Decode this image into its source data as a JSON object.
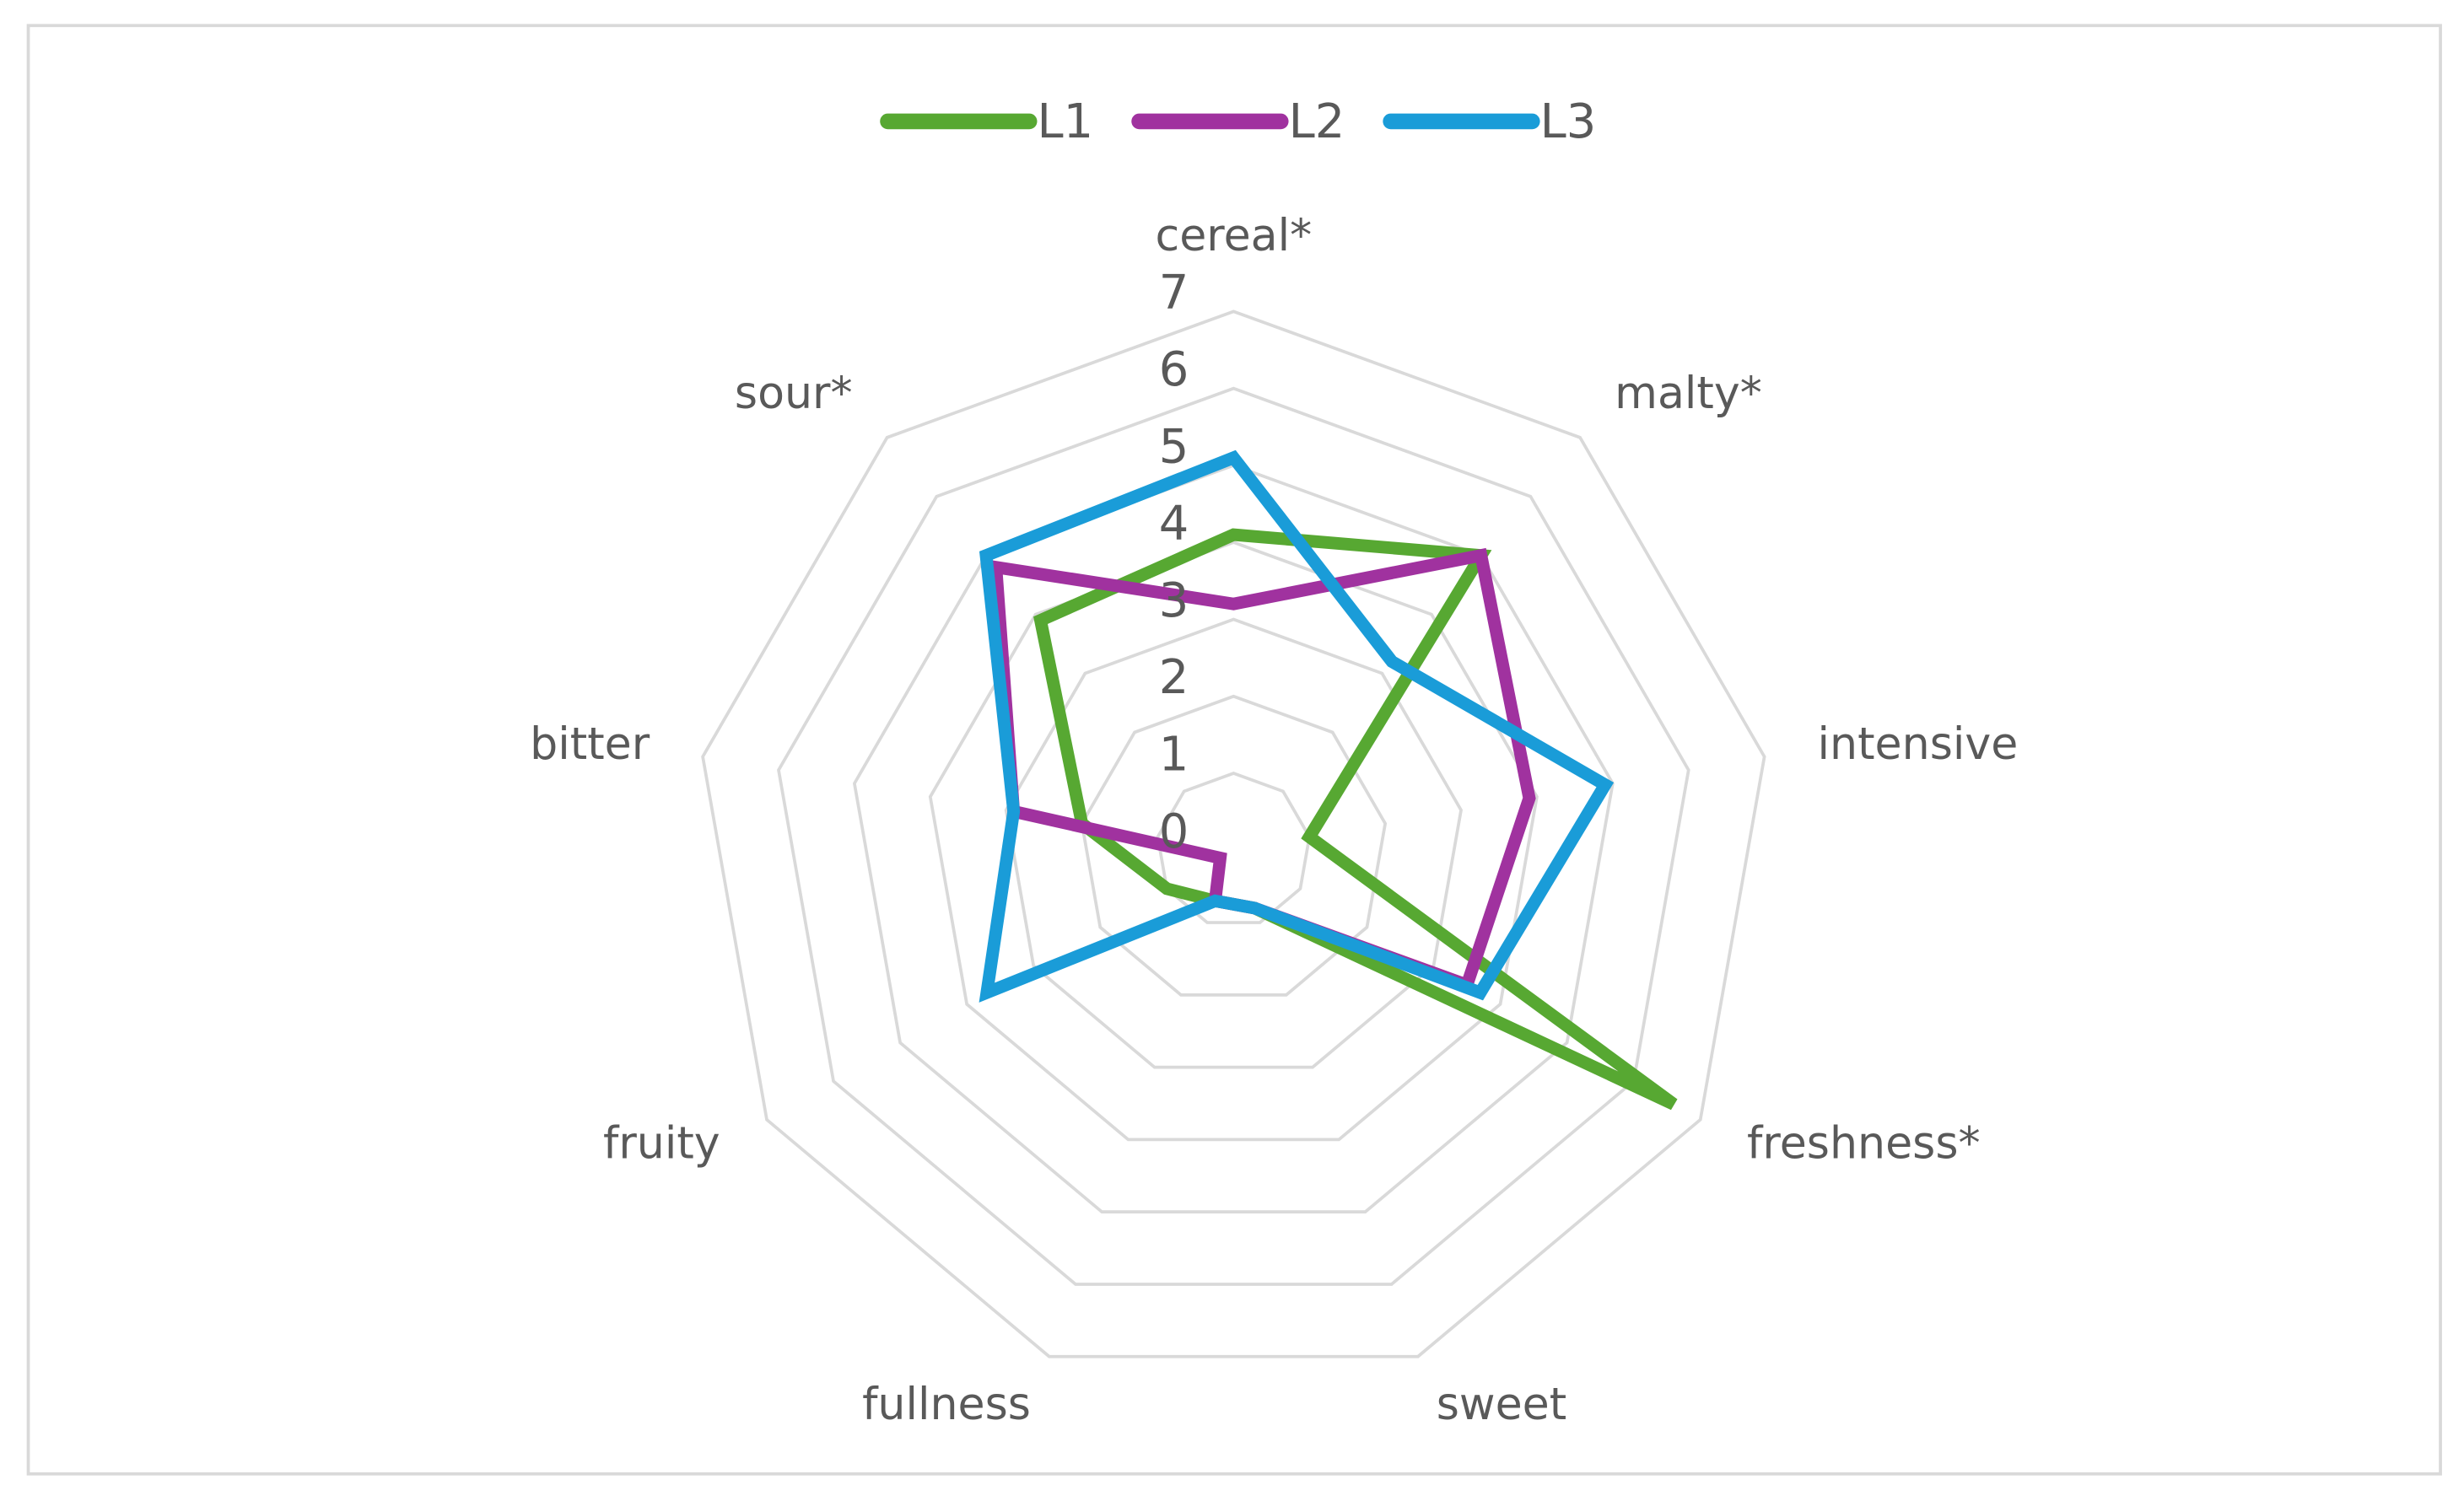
{
  "chart_data": {
    "type": "radar",
    "categories": [
      "cereal*",
      "malty*",
      "intensive",
      "freshness*",
      "sweet",
      "fullness",
      "fruity",
      "bitter",
      "sour*"
    ],
    "series": [
      {
        "name": "L1",
        "color": "#57a832",
        "values": [
          4.1,
          5.0,
          1.0,
          6.6,
          0.8,
          0.7,
          1.0,
          2.0,
          3.9
        ]
      },
      {
        "name": "L2",
        "color": "#a0329f",
        "values": [
          3.2,
          5.0,
          3.9,
          3.5,
          0.8,
          0.7,
          0.2,
          2.9,
          4.8
        ]
      },
      {
        "name": "L3",
        "color": "#1a9cd8",
        "values": [
          5.1,
          3.2,
          4.9,
          3.7,
          0.8,
          0.7,
          3.7,
          2.9,
          5.0
        ]
      }
    ],
    "ylim": [
      0,
      7
    ],
    "yticks": [
      0,
      1,
      2,
      3,
      4,
      5,
      6,
      7
    ],
    "grid": true,
    "legend": "top"
  }
}
